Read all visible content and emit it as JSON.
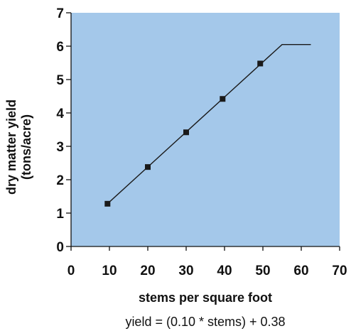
{
  "chart_data": {
    "type": "line",
    "xlabel": "stems per square foot",
    "ylabel_lines": [
      "dry matter yield",
      "(tons/acre)"
    ],
    "formula": "yield = (0.10 * stems)  + 0.38",
    "xlim": [
      0,
      70
    ],
    "ylim": [
      0,
      7
    ],
    "x_ticks": [
      "0",
      "10",
      "20",
      "30",
      "40",
      "50",
      "60",
      "70"
    ],
    "y_ticks": [
      "0",
      "1",
      "2",
      "3",
      "4",
      "5",
      "6",
      "7"
    ],
    "grid": false,
    "colors": {
      "plot_background": "#a4c8ea",
      "line": "#1a1a1a",
      "marker": "#1a1a1a"
    },
    "series": [
      {
        "line": {
          "x": [
            9.5,
            55,
            62.5
          ],
          "y": [
            1.28,
            6.05,
            6.05
          ]
        },
        "markers": {
          "x": [
            9.5,
            20,
            30,
            39.5,
            49.3
          ],
          "y": [
            1.28,
            2.38,
            3.42,
            4.42,
            5.48
          ]
        }
      }
    ]
  }
}
